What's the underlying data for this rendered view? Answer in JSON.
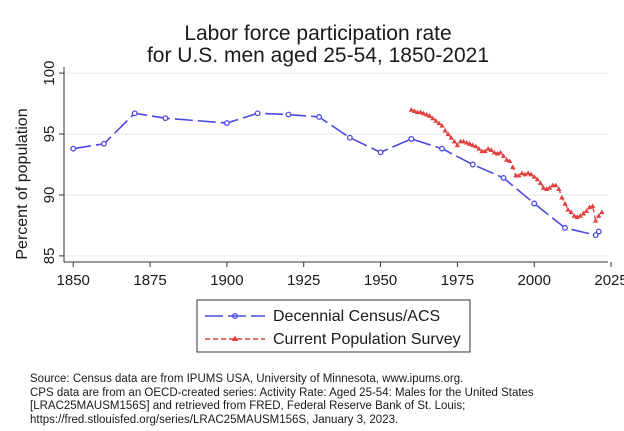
{
  "chart_data": {
    "type": "line",
    "title": [
      "Labor force participation rate",
      "for U.S. men aged 25-54, 1850-2021"
    ],
    "ylabel": "Percent of population",
    "xlabel": "",
    "xlim": [
      1847,
      2024
    ],
    "ylim": [
      84.5,
      100.5
    ],
    "xticks": [
      1850,
      1875,
      1900,
      1925,
      1950,
      1975,
      2000,
      2025
    ],
    "yticks": [
      85,
      90,
      95,
      100
    ],
    "grid": "horizontal",
    "legend_position": "bottom",
    "series": [
      {
        "name": "Decennial Census/ACS",
        "color": "#4a4ae0",
        "style": "long-dash",
        "marker": "circle",
        "points": [
          [
            1850,
            93.8
          ],
          [
            1860,
            94.2
          ],
          [
            1870,
            96.7
          ],
          [
            1880,
            96.3
          ],
          [
            1900,
            95.9
          ],
          [
            1910,
            96.7
          ],
          [
            1920,
            96.6
          ],
          [
            1930,
            96.4
          ],
          [
            1940,
            94.7
          ],
          [
            1950,
            93.5
          ],
          [
            1960,
            94.6
          ],
          [
            1970,
            93.8
          ],
          [
            1980,
            92.5
          ],
          [
            1990,
            91.4
          ],
          [
            2000,
            89.3
          ],
          [
            2010,
            87.3
          ],
          [
            2020,
            86.7
          ],
          [
            2021,
            87.0
          ]
        ]
      },
      {
        "name": "Current Population Survey",
        "color": "#e04040",
        "style": "short-dash",
        "marker": "triangle",
        "points": [
          [
            1960,
            97.0
          ],
          [
            1961,
            96.9
          ],
          [
            1962,
            96.8
          ],
          [
            1963,
            96.8
          ],
          [
            1964,
            96.7
          ],
          [
            1965,
            96.6
          ],
          [
            1966,
            96.5
          ],
          [
            1967,
            96.3
          ],
          [
            1968,
            96.1
          ],
          [
            1969,
            95.9
          ],
          [
            1970,
            95.7
          ],
          [
            1971,
            95.3
          ],
          [
            1972,
            95.0
          ],
          [
            1973,
            94.7
          ],
          [
            1974,
            94.4
          ],
          [
            1975,
            94.1
          ],
          [
            1976,
            94.4
          ],
          [
            1977,
            94.4
          ],
          [
            1978,
            94.3
          ],
          [
            1979,
            94.2
          ],
          [
            1980,
            94.1
          ],
          [
            1981,
            94.0
          ],
          [
            1982,
            93.8
          ],
          [
            1983,
            93.6
          ],
          [
            1984,
            93.6
          ],
          [
            1985,
            93.8
          ],
          [
            1986,
            93.7
          ],
          [
            1987,
            93.5
          ],
          [
            1988,
            93.4
          ],
          [
            1989,
            93.5
          ],
          [
            1990,
            93.2
          ],
          [
            1991,
            92.9
          ],
          [
            1992,
            92.8
          ],
          [
            1993,
            92.3
          ],
          [
            1994,
            91.6
          ],
          [
            1995,
            91.6
          ],
          [
            1996,
            91.8
          ],
          [
            1997,
            91.7
          ],
          [
            1998,
            91.8
          ],
          [
            1999,
            91.7
          ],
          [
            2000,
            91.5
          ],
          [
            2001,
            91.3
          ],
          [
            2002,
            91.0
          ],
          [
            2003,
            90.6
          ],
          [
            2004,
            90.5
          ],
          [
            2005,
            90.6
          ],
          [
            2006,
            90.8
          ],
          [
            2007,
            90.8
          ],
          [
            2008,
            90.5
          ],
          [
            2009,
            89.8
          ],
          [
            2010,
            89.3
          ],
          [
            2011,
            88.8
          ],
          [
            2012,
            88.6
          ],
          [
            2013,
            88.3
          ],
          [
            2014,
            88.2
          ],
          [
            2015,
            88.3
          ],
          [
            2016,
            88.5
          ],
          [
            2017,
            88.7
          ],
          [
            2018,
            89.0
          ],
          [
            2019,
            89.1
          ],
          [
            2020,
            87.9
          ],
          [
            2021,
            88.3
          ],
          [
            2022,
            88.6
          ]
        ]
      }
    ]
  },
  "source": [
    "Source: Census data are from IPUMS USA, University of Minnesota, www.ipums.org.",
    "CPS data are from an OECD-created series: Activity Rate: Aged 25-54: Males for the United States",
    "[LRAC25MAUSM156S] and retrieved from FRED, Federal Reserve Bank of St. Louis;",
    "https://fred.stlouisfed.org/series/LRAC25MAUSM156S, January 3, 2023."
  ]
}
